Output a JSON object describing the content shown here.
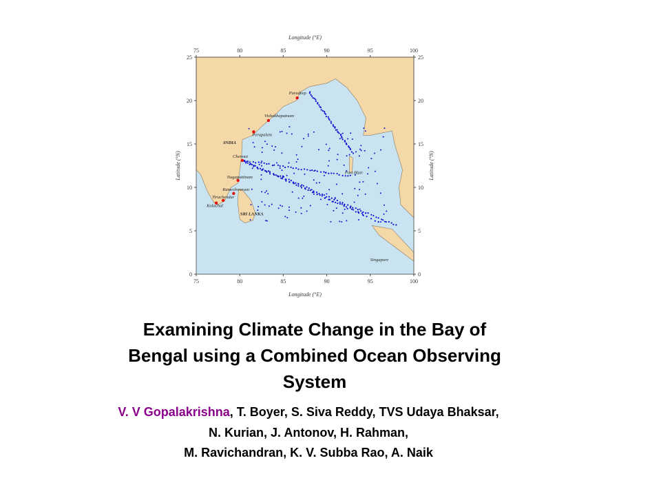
{
  "map": {
    "x_axis_label": "Longitude (°E)",
    "y_axis_label": "Latitude (°N)",
    "xticks": [
      75,
      80,
      85,
      90,
      95,
      100
    ],
    "yticks": [
      0,
      5,
      10,
      15,
      20,
      25
    ],
    "places": [
      "Paradeep",
      "Vishakhapatnam",
      "Perupalem",
      "INDIA",
      "Chennai",
      "Nagapattinam",
      "Rameshwaram",
      "Tiruchendur",
      "Kolachal",
      "SRI LANKA",
      "Port Blair",
      "Singapore"
    ]
  },
  "title": {
    "lines": [
      "Examining Climate Change in the Bay of",
      "Bengal using a Combined Ocean Observing",
      "System"
    ]
  },
  "authors": {
    "presenter": "V. V Gopalakrishna",
    "lines": [
      ", T. Boyer, S. Siva Reddy, TVS Udaya Bhaksar,",
      "N. Kurian, J. Antonov, H. Rahman,",
      "M. Ravichandran,  K. V. Subba Rao,  A. Naik"
    ]
  }
}
